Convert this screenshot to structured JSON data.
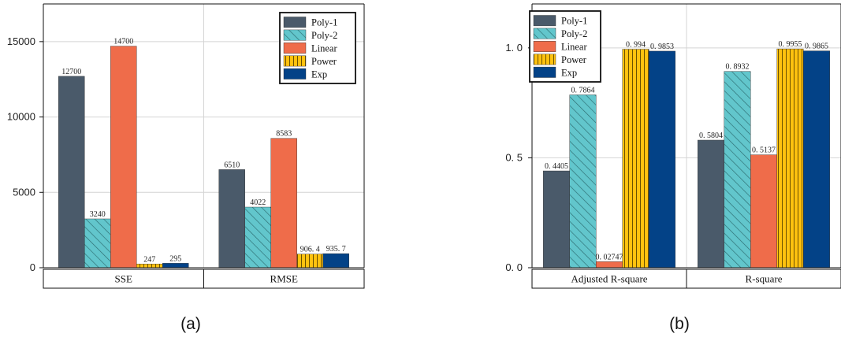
{
  "colors": {
    "Poly-1": "#4a5a6a",
    "Poly-2": "#62c6cc",
    "Linear": "#ef6c4a",
    "Power": "#ffc20f",
    "Exp": "#034287"
  },
  "chart_data": [
    {
      "type": "bar",
      "panel_label": "(a)",
      "categories": [
        "SSE",
        "RMSE"
      ],
      "series": [
        {
          "name": "Poly-1",
          "values": [
            12700,
            6510
          ],
          "labels": [
            "12700",
            "6510"
          ]
        },
        {
          "name": "Poly-2",
          "values": [
            3240,
            4022
          ],
          "labels": [
            "3240",
            "4022"
          ]
        },
        {
          "name": "Linear",
          "values": [
            14700,
            8583
          ],
          "labels": [
            "14700",
            "8583"
          ]
        },
        {
          "name": "Power",
          "values": [
            247,
            906.4
          ],
          "labels": [
            "247",
            "906. 4"
          ]
        },
        {
          "name": "Exp",
          "values": [
            295,
            935.7
          ],
          "labels": [
            "295",
            "935. 7"
          ]
        }
      ],
      "ylim": [
        0,
        17500
      ],
      "yticks": [
        0,
        5000,
        10000,
        15000
      ],
      "ytick_labels": [
        "0",
        "5000",
        "10000",
        "15000"
      ],
      "grid": true,
      "legend_position": "top-right"
    },
    {
      "type": "bar",
      "panel_label": "(b)",
      "categories": [
        "Adjusted R-square",
        "R-square"
      ],
      "series": [
        {
          "name": "Poly-1",
          "values": [
            0.4405,
            0.5804
          ],
          "labels": [
            "0. 4405",
            "0. 5804"
          ]
        },
        {
          "name": "Poly-2",
          "values": [
            0.7864,
            0.8932
          ],
          "labels": [
            "0. 7864",
            "0. 8932"
          ]
        },
        {
          "name": "Linear",
          "values": [
            0.02747,
            0.5137
          ],
          "labels": [
            "0. 02747",
            "0. 5137"
          ]
        },
        {
          "name": "Power",
          "values": [
            0.994,
            0.9955
          ],
          "labels": [
            "0. 994",
            "0. 9955"
          ]
        },
        {
          "name": "Exp",
          "values": [
            0.9853,
            0.9865
          ],
          "labels": [
            "0. 9853",
            "0. 9865"
          ]
        }
      ],
      "ylim": [
        0,
        1.2
      ],
      "yticks": [
        0,
        0.5,
        1.0
      ],
      "ytick_labels": [
        "0. 0",
        "0. 5",
        "1. 0"
      ],
      "grid": true,
      "legend_position": "top-left"
    }
  ]
}
